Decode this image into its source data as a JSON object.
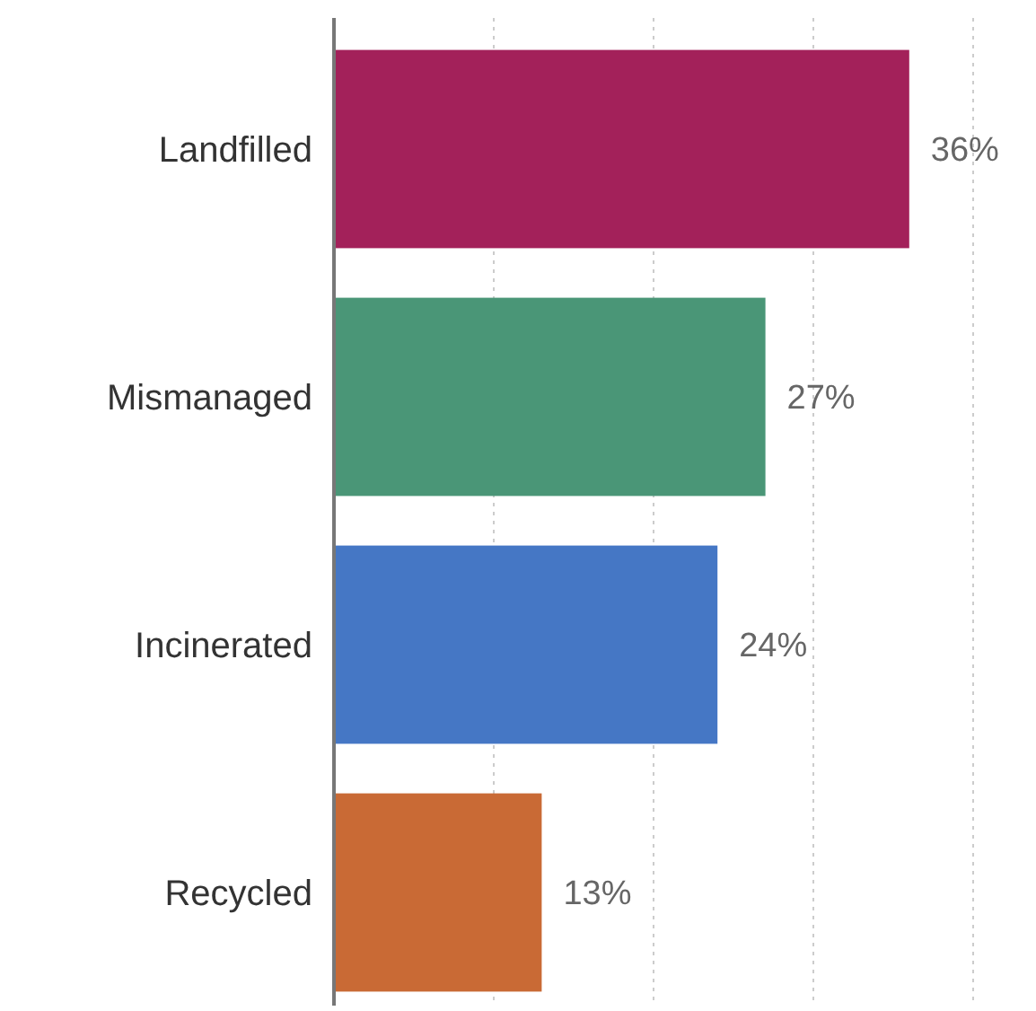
{
  "chart_data": {
    "type": "bar",
    "orientation": "horizontal",
    "categories": [
      "Landfilled",
      "Mismanaged",
      "Incinerated",
      "Recycled"
    ],
    "values": [
      36,
      27,
      24,
      13
    ],
    "colors": [
      "#a3215a",
      "#4a9677",
      "#4577c5",
      "#c96a35"
    ],
    "value_labels": [
      "36%",
      "27%",
      "24%",
      "13%"
    ],
    "xlim": [
      0,
      40
    ],
    "xticks": [
      {
        "value": 0,
        "label": null
      },
      {
        "value": 10,
        "label": null
      },
      {
        "value": 20,
        "label": null
      },
      {
        "value": 30,
        "label": null
      },
      {
        "value": 40,
        "label": null
      }
    ],
    "grid": "x",
    "tick_labels": "y"
  }
}
